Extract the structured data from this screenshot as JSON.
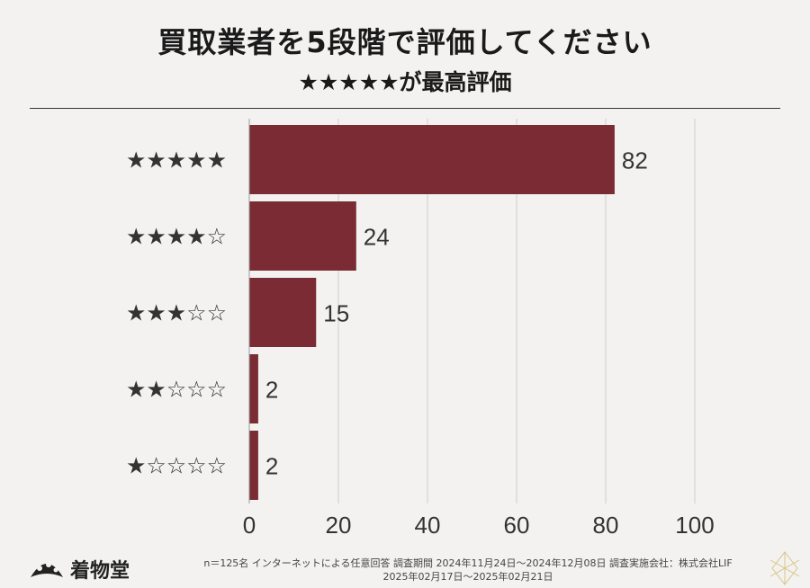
{
  "header": {
    "title": "買取業者を5段階で評価してください",
    "subtitle": "★★★★★が最高評価"
  },
  "footer": {
    "note_line1": "n＝125名 インターネットによる任意回答 調査期間 2024年11月24日～2024年12月08日 調査実施会社：株式会社LIF",
    "note_line2": "2025年02月17日～2025年02月21日",
    "logo_text": "着物堂"
  },
  "colors": {
    "bar": "#7a2b33",
    "grid": "#cfcfcf",
    "axis": "#9a9a9a"
  },
  "chart_data": {
    "type": "bar",
    "orientation": "horizontal",
    "categories": [
      "★★★★★",
      "★★★★☆",
      "★★★☆☆",
      "★★☆☆☆",
      "★☆☆☆☆"
    ],
    "values": [
      82,
      24,
      15,
      2,
      2
    ],
    "xlim": [
      0,
      100
    ],
    "xticks": [
      "0",
      "20",
      "40",
      "60",
      "80",
      "100"
    ],
    "grid": true
  }
}
